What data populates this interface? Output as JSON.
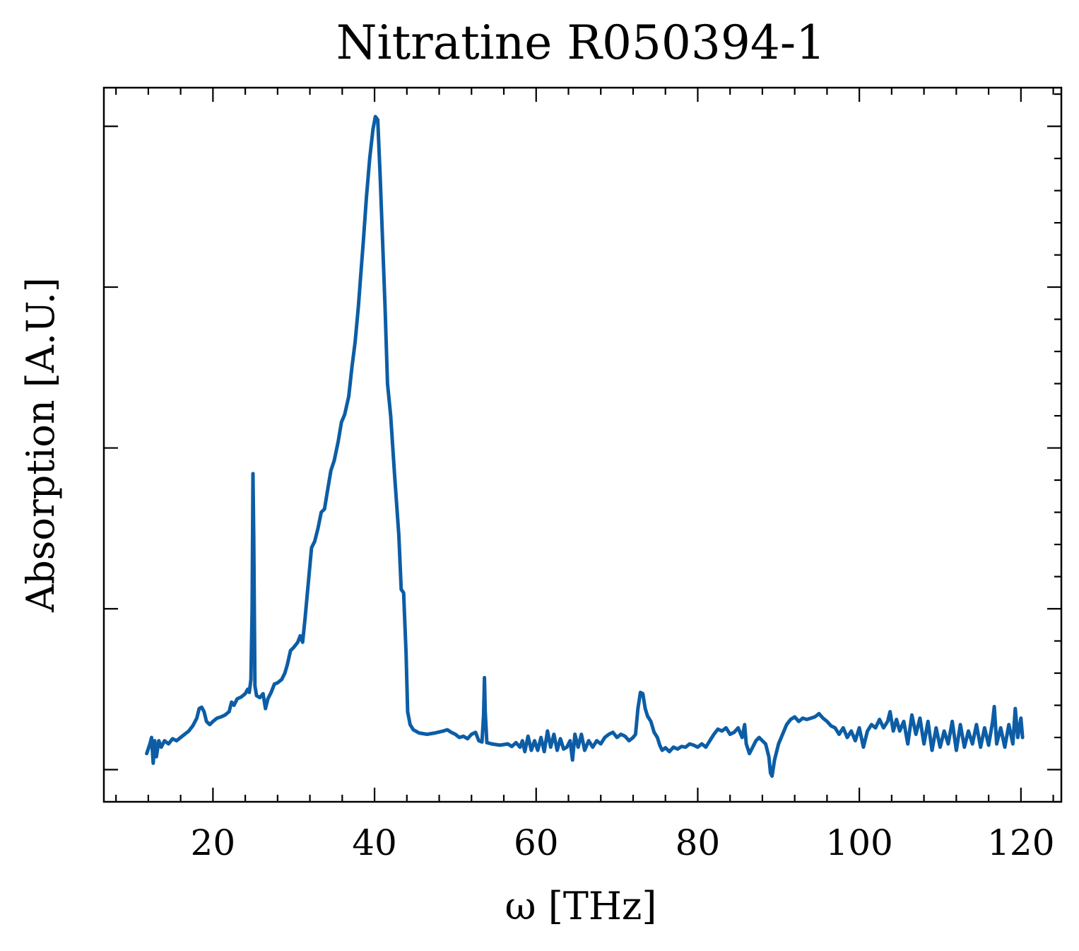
{
  "chart_data": {
    "type": "line",
    "title": "Nitratine R050394-1",
    "xlabel": "ω [THz]",
    "ylabel": "Absorption [A.U.]",
    "xlim": [
      6.5,
      125
    ],
    "ylim": [
      -0.05,
      1.06
    ],
    "x_ticks": [
      20,
      40,
      60,
      80,
      100,
      120
    ],
    "x_tick_labels": [
      "20",
      "40",
      "60",
      "80",
      "100",
      "120"
    ],
    "y_ticks": [
      0.0,
      0.25,
      0.5,
      0.75,
      1.0
    ],
    "y_tick_labels_visible": false,
    "x_minor_step": 4,
    "y_minor_step": 0.05,
    "grid": false,
    "series": [
      {
        "color": "#0c5da5",
        "points": [
          [
            11.8,
            0.025
          ],
          [
            12.2,
            0.04
          ],
          [
            12.4,
            0.05
          ],
          [
            12.6,
            0.01
          ],
          [
            12.8,
            0.045
          ],
          [
            13.0,
            0.02
          ],
          [
            13.3,
            0.045
          ],
          [
            13.6,
            0.035
          ],
          [
            14.0,
            0.045
          ],
          [
            14.5,
            0.04
          ],
          [
            15.0,
            0.048
          ],
          [
            15.5,
            0.045
          ],
          [
            16.0,
            0.05
          ],
          [
            16.5,
            0.055
          ],
          [
            17.0,
            0.06
          ],
          [
            17.5,
            0.068
          ],
          [
            18.0,
            0.08
          ],
          [
            18.3,
            0.095
          ],
          [
            18.6,
            0.097
          ],
          [
            18.9,
            0.09
          ],
          [
            19.2,
            0.075
          ],
          [
            19.6,
            0.07
          ],
          [
            20.0,
            0.075
          ],
          [
            20.5,
            0.08
          ],
          [
            21.0,
            0.082
          ],
          [
            21.5,
            0.085
          ],
          [
            22.0,
            0.09
          ],
          [
            22.3,
            0.105
          ],
          [
            22.6,
            0.1
          ],
          [
            23.0,
            0.11
          ],
          [
            23.5,
            0.113
          ],
          [
            24.0,
            0.118
          ],
          [
            24.3,
            0.125
          ],
          [
            24.5,
            0.12
          ],
          [
            24.7,
            0.14
          ],
          [
            24.85,
            0.25
          ],
          [
            24.95,
            0.46
          ],
          [
            25.05,
            0.36
          ],
          [
            25.2,
            0.13
          ],
          [
            25.4,
            0.115
          ],
          [
            25.8,
            0.112
          ],
          [
            26.2,
            0.118
          ],
          [
            26.5,
            0.095
          ],
          [
            26.8,
            0.11
          ],
          [
            27.2,
            0.12
          ],
          [
            27.6,
            0.133
          ],
          [
            28.0,
            0.135
          ],
          [
            28.5,
            0.14
          ],
          [
            28.9,
            0.15
          ],
          [
            29.2,
            0.163
          ],
          [
            29.6,
            0.185
          ],
          [
            30.0,
            0.19
          ],
          [
            30.5,
            0.198
          ],
          [
            30.8,
            0.208
          ],
          [
            31.1,
            0.198
          ],
          [
            31.4,
            0.235
          ],
          [
            31.8,
            0.29
          ],
          [
            32.2,
            0.345
          ],
          [
            32.6,
            0.355
          ],
          [
            33.0,
            0.375
          ],
          [
            33.4,
            0.4
          ],
          [
            33.8,
            0.405
          ],
          [
            34.2,
            0.435
          ],
          [
            34.6,
            0.465
          ],
          [
            35.0,
            0.48
          ],
          [
            35.5,
            0.51
          ],
          [
            35.9,
            0.54
          ],
          [
            36.3,
            0.552
          ],
          [
            36.8,
            0.58
          ],
          [
            37.2,
            0.625
          ],
          [
            37.6,
            0.665
          ],
          [
            38.0,
            0.72
          ],
          [
            38.3,
            0.77
          ],
          [
            38.6,
            0.82
          ],
          [
            39.0,
            0.89
          ],
          [
            39.4,
            0.95
          ],
          [
            39.8,
            0.995
          ],
          [
            40.1,
            1.015
          ],
          [
            40.4,
            1.01
          ],
          [
            40.7,
            0.92
          ],
          [
            41.0,
            0.82
          ],
          [
            41.3,
            0.72
          ],
          [
            41.6,
            0.6
          ],
          [
            42.0,
            0.55
          ],
          [
            42.5,
            0.455
          ],
          [
            43.0,
            0.365
          ],
          [
            43.3,
            0.28
          ],
          [
            43.6,
            0.275
          ],
          [
            43.9,
            0.18
          ],
          [
            44.1,
            0.09
          ],
          [
            44.4,
            0.07
          ],
          [
            44.8,
            0.062
          ],
          [
            45.5,
            0.057
          ],
          [
            46.5,
            0.055
          ],
          [
            47.5,
            0.057
          ],
          [
            48.5,
            0.06
          ],
          [
            49.0,
            0.062
          ],
          [
            49.5,
            0.058
          ],
          [
            50.0,
            0.055
          ],
          [
            50.5,
            0.05
          ],
          [
            51.0,
            0.052
          ],
          [
            51.5,
            0.048
          ],
          [
            52.0,
            0.055
          ],
          [
            52.5,
            0.058
          ],
          [
            52.9,
            0.045
          ],
          [
            53.3,
            0.043
          ],
          [
            53.5,
            0.085
          ],
          [
            53.6,
            0.143
          ],
          [
            53.7,
            0.09
          ],
          [
            53.9,
            0.042
          ],
          [
            54.5,
            0.04
          ],
          [
            55.5,
            0.038
          ],
          [
            56.5,
            0.04
          ],
          [
            57.0,
            0.036
          ],
          [
            57.5,
            0.042
          ],
          [
            58.0,
            0.035
          ],
          [
            58.3,
            0.045
          ],
          [
            58.6,
            0.028
          ],
          [
            59.0,
            0.052
          ],
          [
            59.4,
            0.03
          ],
          [
            59.8,
            0.045
          ],
          [
            60.2,
            0.03
          ],
          [
            60.6,
            0.05
          ],
          [
            61.0,
            0.028
          ],
          [
            61.4,
            0.06
          ],
          [
            61.8,
            0.035
          ],
          [
            62.2,
            0.055
          ],
          [
            62.6,
            0.03
          ],
          [
            63.0,
            0.048
          ],
          [
            63.4,
            0.032
          ],
          [
            63.8,
            0.035
          ],
          [
            64.2,
            0.045
          ],
          [
            64.5,
            0.015
          ],
          [
            64.8,
            0.055
          ],
          [
            65.2,
            0.035
          ],
          [
            65.6,
            0.055
          ],
          [
            66.0,
            0.03
          ],
          [
            66.5,
            0.045
          ],
          [
            67.0,
            0.035
          ],
          [
            67.5,
            0.045
          ],
          [
            68.0,
            0.04
          ],
          [
            68.5,
            0.05
          ],
          [
            69.0,
            0.055
          ],
          [
            69.5,
            0.058
          ],
          [
            70.0,
            0.05
          ],
          [
            70.5,
            0.055
          ],
          [
            71.0,
            0.052
          ],
          [
            71.5,
            0.045
          ],
          [
            72.0,
            0.05
          ],
          [
            72.3,
            0.055
          ],
          [
            72.6,
            0.095
          ],
          [
            72.9,
            0.12
          ],
          [
            73.2,
            0.118
          ],
          [
            73.5,
            0.095
          ],
          [
            73.8,
            0.083
          ],
          [
            74.2,
            0.075
          ],
          [
            74.6,
            0.058
          ],
          [
            75.0,
            0.05
          ],
          [
            75.3,
            0.038
          ],
          [
            75.6,
            0.03
          ],
          [
            76.0,
            0.034
          ],
          [
            76.5,
            0.028
          ],
          [
            77.0,
            0.035
          ],
          [
            77.5,
            0.032
          ],
          [
            78.0,
            0.036
          ],
          [
            78.5,
            0.035
          ],
          [
            79.0,
            0.04
          ],
          [
            79.5,
            0.038
          ],
          [
            80.0,
            0.035
          ],
          [
            80.5,
            0.04
          ],
          [
            81.0,
            0.035
          ],
          [
            81.5,
            0.045
          ],
          [
            82.0,
            0.055
          ],
          [
            82.5,
            0.063
          ],
          [
            83.0,
            0.06
          ],
          [
            83.5,
            0.065
          ],
          [
            84.0,
            0.055
          ],
          [
            84.5,
            0.058
          ],
          [
            85.0,
            0.065
          ],
          [
            85.5,
            0.05
          ],
          [
            85.8,
            0.07
          ],
          [
            86.0,
            0.04
          ],
          [
            86.4,
            0.025
          ],
          [
            86.8,
            0.035
          ],
          [
            87.2,
            0.045
          ],
          [
            87.6,
            0.05
          ],
          [
            88.0,
            0.045
          ],
          [
            88.4,
            0.04
          ],
          [
            88.8,
            0.02
          ],
          [
            89.0,
            -0.005
          ],
          [
            89.2,
            -0.01
          ],
          [
            89.5,
            0.015
          ],
          [
            90.0,
            0.04
          ],
          [
            90.5,
            0.055
          ],
          [
            91.0,
            0.07
          ],
          [
            91.5,
            0.078
          ],
          [
            92.0,
            0.082
          ],
          [
            92.5,
            0.075
          ],
          [
            93.0,
            0.08
          ],
          [
            93.5,
            0.078
          ],
          [
            94.0,
            0.08
          ],
          [
            94.5,
            0.082
          ],
          [
            95.0,
            0.087
          ],
          [
            95.5,
            0.08
          ],
          [
            96.0,
            0.075
          ],
          [
            96.5,
            0.068
          ],
          [
            97.0,
            0.065
          ],
          [
            97.5,
            0.055
          ],
          [
            98.0,
            0.065
          ],
          [
            98.5,
            0.05
          ],
          [
            99.0,
            0.06
          ],
          [
            99.5,
            0.045
          ],
          [
            100.0,
            0.065
          ],
          [
            100.5,
            0.035
          ],
          [
            101.0,
            0.06
          ],
          [
            101.5,
            0.07
          ],
          [
            102.0,
            0.065
          ],
          [
            102.5,
            0.078
          ],
          [
            103.0,
            0.065
          ],
          [
            103.5,
            0.075
          ],
          [
            103.8,
            0.09
          ],
          [
            104.2,
            0.06
          ],
          [
            104.6,
            0.078
          ],
          [
            105.0,
            0.06
          ],
          [
            105.5,
            0.075
          ],
          [
            106.0,
            0.04
          ],
          [
            106.5,
            0.085
          ],
          [
            107.0,
            0.055
          ],
          [
            107.5,
            0.08
          ],
          [
            108.0,
            0.04
          ],
          [
            108.5,
            0.075
          ],
          [
            109.0,
            0.03
          ],
          [
            109.5,
            0.065
          ],
          [
            110.0,
            0.035
          ],
          [
            110.5,
            0.06
          ],
          [
            111.0,
            0.04
          ],
          [
            111.5,
            0.075
          ],
          [
            112.0,
            0.03
          ],
          [
            112.5,
            0.07
          ],
          [
            113.0,
            0.035
          ],
          [
            113.5,
            0.06
          ],
          [
            114.0,
            0.04
          ],
          [
            114.5,
            0.07
          ],
          [
            115.0,
            0.035
          ],
          [
            115.5,
            0.065
          ],
          [
            116.0,
            0.038
          ],
          [
            116.5,
            0.075
          ],
          [
            116.7,
            0.098
          ],
          [
            117.0,
            0.04
          ],
          [
            117.5,
            0.065
          ],
          [
            118.0,
            0.035
          ],
          [
            118.5,
            0.07
          ],
          [
            119.0,
            0.04
          ],
          [
            119.3,
            0.095
          ],
          [
            119.6,
            0.05
          ],
          [
            120.0,
            0.08
          ],
          [
            120.2,
            0.05
          ]
        ]
      }
    ]
  }
}
